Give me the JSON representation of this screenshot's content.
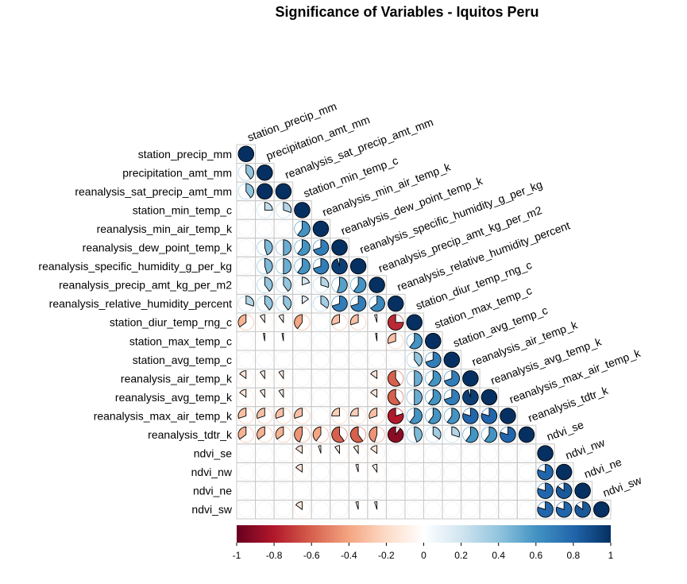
{
  "chart_data": {
    "type": "heatmap",
    "subtype": "correlation-matrix-pie",
    "title": "Significance of Variables - Iquitos Peru",
    "variables": [
      "station_precip_mm",
      "precipitation_amt_mm",
      "reanalysis_sat_precip_amt_mm",
      "station_min_temp_c",
      "reanalysis_min_air_temp_k",
      "reanalysis_dew_point_temp_k",
      "reanalysis_specific_humidity_g_per_kg",
      "reanalysis_precip_amt_kg_per_m2",
      "reanalysis_relative_humidity_percent",
      "station_diur_temp_rng_c",
      "station_max_temp_c",
      "station_avg_temp_c",
      "reanalysis_air_temp_k",
      "reanalysis_avg_temp_k",
      "reanalysis_max_air_temp_k",
      "reanalysis_tdtr_k",
      "ndvi_se",
      "ndvi_nw",
      "ndvi_ne",
      "ndvi_sw"
    ],
    "lower_triangle": [
      [
        1
      ],
      [
        0.4,
        1
      ],
      [
        0.4,
        1,
        1
      ],
      [
        0,
        0.25,
        0.3,
        1
      ],
      [
        0,
        0,
        0,
        0.6,
        1
      ],
      [
        0,
        0.45,
        0.5,
        0.6,
        0.7,
        1
      ],
      [
        0,
        0.45,
        0.5,
        0.6,
        0.7,
        0.95,
        1
      ],
      [
        0,
        0.4,
        0.4,
        0.2,
        0.3,
        0.55,
        0.6,
        1
      ],
      [
        0.3,
        0.4,
        0.4,
        0.15,
        0.35,
        0.7,
        0.7,
        0.65,
        1
      ],
      [
        -0.35,
        -0.1,
        -0.1,
        -0.4,
        0,
        -0.3,
        -0.3,
        -0.05,
        -0.75,
        1
      ],
      [
        0,
        -0.03,
        -0.03,
        0,
        0,
        0,
        0,
        -0.03,
        -0.3,
        0.6,
        1
      ],
      [
        0,
        0,
        0,
        0,
        0,
        0,
        0,
        0,
        0,
        0.4,
        0.7,
        1
      ],
      [
        -0.15,
        -0.1,
        -0.1,
        0,
        0,
        0,
        0,
        -0.15,
        -0.6,
        0.5,
        0.6,
        0.7,
        1
      ],
      [
        -0.15,
        -0.1,
        -0.1,
        0,
        0,
        0,
        0,
        -0.15,
        -0.6,
        0.5,
        0.6,
        0.7,
        0.95,
        1
      ],
      [
        -0.3,
        -0.3,
        -0.3,
        -0.3,
        0,
        -0.25,
        -0.25,
        -0.3,
        -0.8,
        0.6,
        0.6,
        0.6,
        0.8,
        0.8,
        1
      ],
      [
        -0.35,
        -0.35,
        -0.35,
        -0.45,
        -0.4,
        -0.6,
        -0.6,
        -0.45,
        -0.9,
        0.45,
        0.35,
        0.3,
        0.6,
        0.6,
        0.8,
        1
      ],
      [
        0,
        0,
        0,
        -0.15,
        -0.05,
        -0.1,
        -0.1,
        -0.15,
        0,
        0,
        0,
        0,
        0,
        0,
        0,
        0,
        1
      ],
      [
        0,
        0,
        0,
        -0.15,
        0,
        0,
        -0.05,
        -0.1,
        0,
        0,
        0,
        0,
        0,
        0,
        0,
        0,
        0.8,
        1
      ],
      [
        0,
        0,
        0,
        0,
        0,
        0,
        0,
        0,
        0,
        0,
        0,
        0,
        0,
        0,
        0,
        0,
        0.8,
        0.85,
        1
      ],
      [
        0,
        0,
        0,
        -0.15,
        0,
        0,
        -0.05,
        -0.05,
        0,
        0,
        0,
        0,
        0,
        0,
        0,
        0,
        0.8,
        0.8,
        0.85,
        1
      ]
    ],
    "colorbar": {
      "ticks": [
        "-1",
        "-0.8",
        "-0.6",
        "-0.4",
        "-0.2",
        "0",
        "0.2",
        "0.4",
        "0.6",
        "0.8",
        "1"
      ],
      "range": [
        -1,
        1
      ],
      "colors": [
        "#67001F",
        "#B2182B",
        "#D6604D",
        "#F4A582",
        "#FDDBC7",
        "#FFFFFF",
        "#D1E5F0",
        "#92C5DE",
        "#4393C3",
        "#2166AC",
        "#053061"
      ]
    },
    "grid": true
  }
}
